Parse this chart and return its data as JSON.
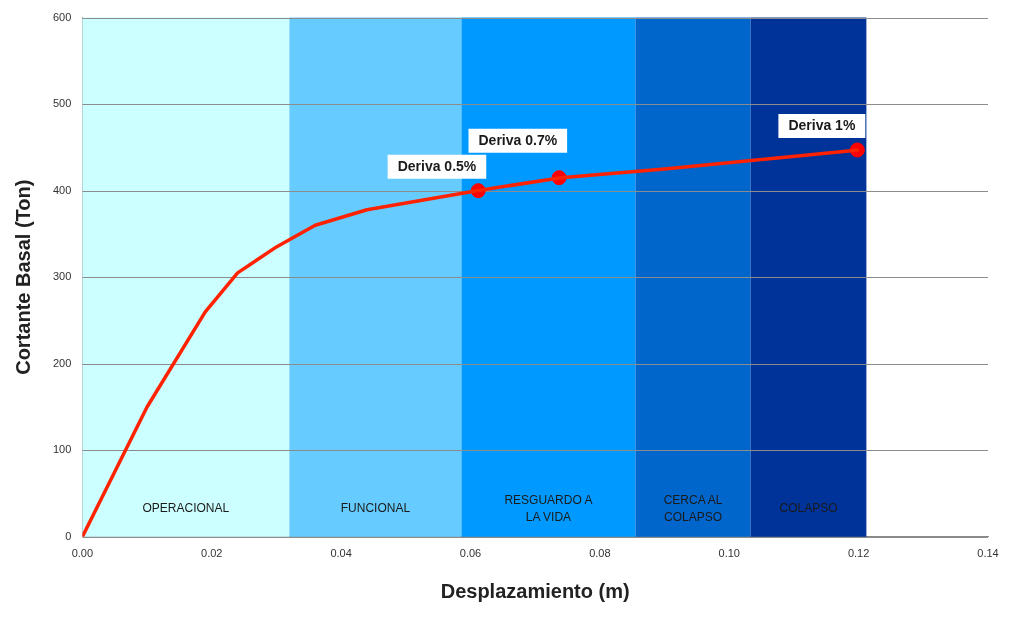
{
  "chart_data": {
    "type": "line",
    "xlabel": "Desplazamiento (m)",
    "ylabel": "Cortante Basal (Ton)",
    "xlim": [
      0,
      0.14
    ],
    "xticks": [
      {
        "value": 0,
        "label": "0.00"
      },
      {
        "value": 0.02,
        "label": "0.02"
      },
      {
        "value": 0.04,
        "label": "0.04"
      },
      {
        "value": 0.06,
        "label": "0.06"
      },
      {
        "value": 0.08,
        "label": "0.08"
      },
      {
        "value": 0.1,
        "label": "0.10"
      },
      {
        "value": 0.12,
        "label": "0.12"
      },
      {
        "value": 0.14,
        "label": "0.14"
      }
    ],
    "ylim": [
      0,
      600
    ],
    "yticks": [
      0,
      100,
      200,
      300,
      400,
      500,
      600
    ],
    "grid": "y",
    "legend": false,
    "series": [
      {
        "color": "#ff2200",
        "marker": "none",
        "line_style": "solid",
        "x": [
          0,
          0.01,
          0.019,
          0.024,
          0.03,
          0.036,
          0.044,
          0.061,
          0.074,
          0.09,
          0.12
        ],
        "values": [
          0,
          150,
          260,
          305,
          335,
          360,
          378,
          400,
          415,
          425,
          447
        ]
      },
      {
        "type": "scatter",
        "color": "#ff0000",
        "marker": "circle",
        "x": [
          0.0612,
          0.0737,
          0.1198
        ],
        "values": [
          400,
          415,
          447
        ]
      }
    ],
    "bands": [
      {
        "axis": "x",
        "from": 0,
        "to": 0.032,
        "label": "OPERACIONAL",
        "color": "#ccffff"
      },
      {
        "axis": "x",
        "from": 0.032,
        "to": 0.0586,
        "label": "FUNCIONAL",
        "color": "#66ccff"
      },
      {
        "axis": "x",
        "from": 0.0586,
        "to": 0.0855,
        "label": "RESGUARDO A\nLA VIDA",
        "color": "#0099ff"
      },
      {
        "axis": "x",
        "from": 0.0855,
        "to": 0.1033,
        "label": "CERCA AL\nCOLAPSO",
        "color": "#0066cc"
      },
      {
        "axis": "x",
        "from": 0.1033,
        "to": 0.1212,
        "label": "COLAPSO",
        "color": "#003399"
      }
    ],
    "annotations": [
      {
        "text": "Deriva 0.5%",
        "x": 0.0612,
        "y": 400
      },
      {
        "text": "Deriva 0.7%",
        "x": 0.0737,
        "y": 415
      },
      {
        "text": "Deriva 1%",
        "x": 0.1198,
        "y": 447
      }
    ]
  }
}
